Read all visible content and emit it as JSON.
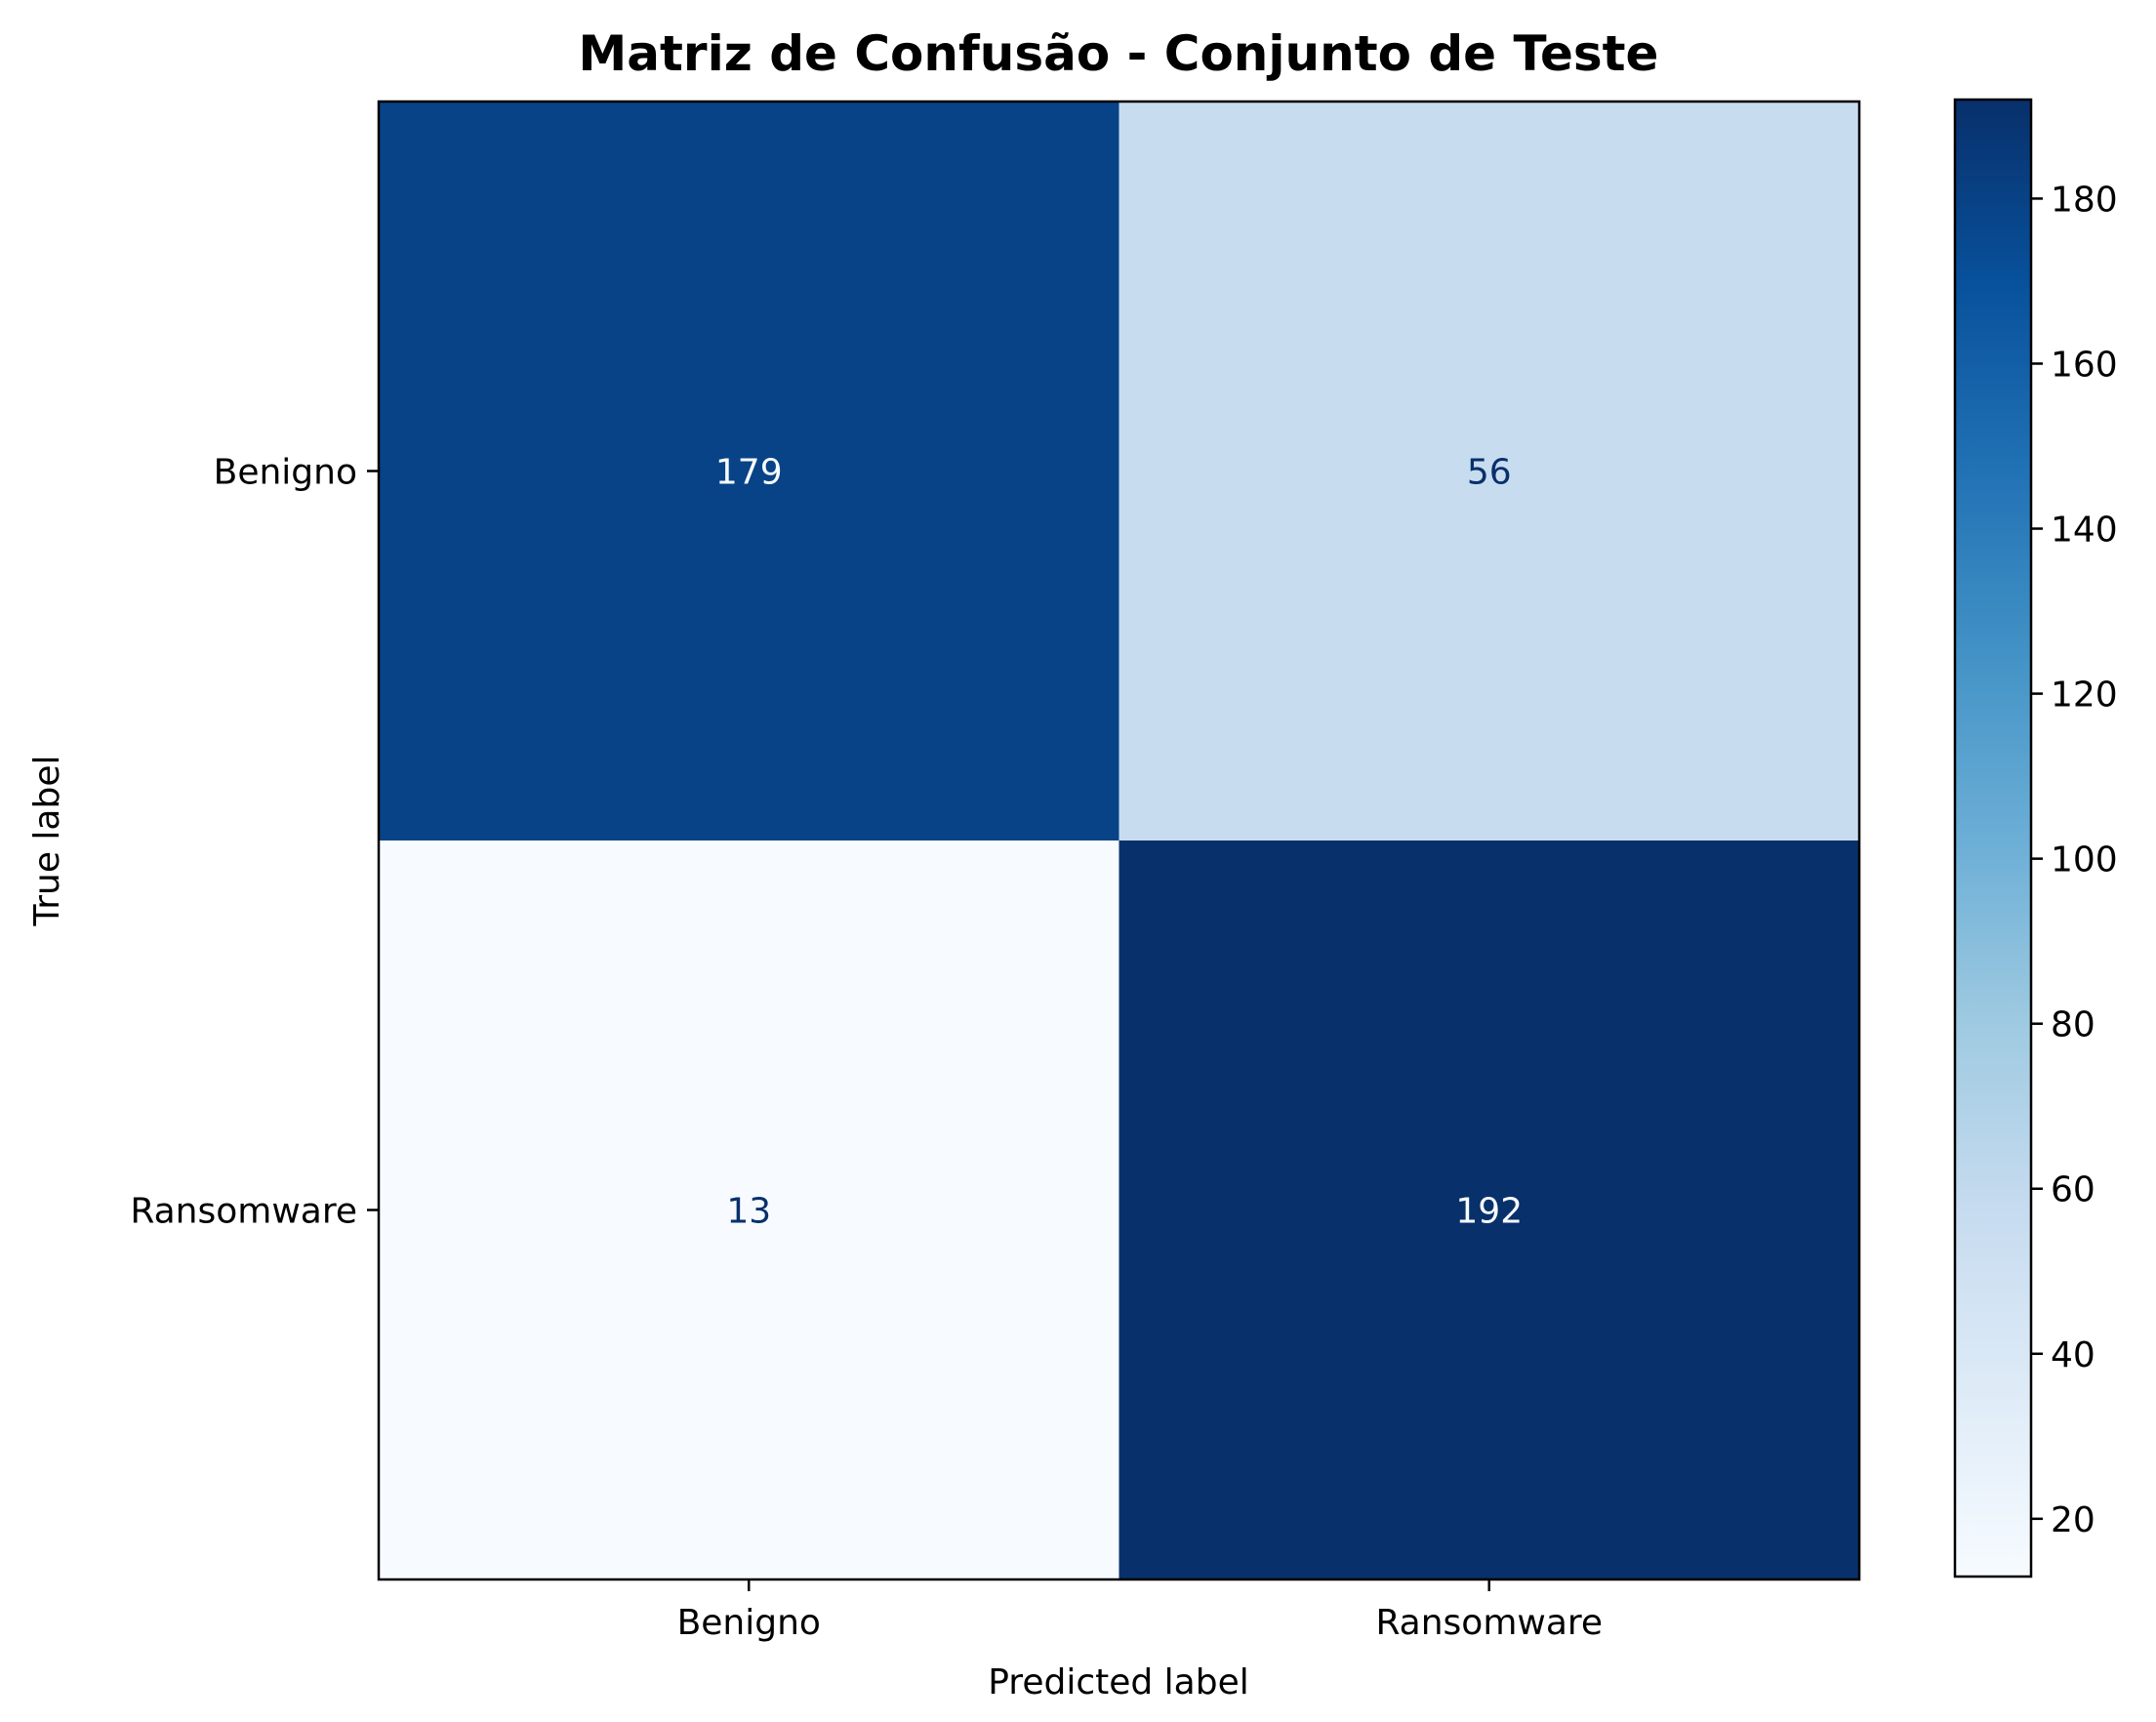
{
  "chart_data": {
    "type": "heatmap",
    "title": "Matriz de Confusão - Conjunto de Teste",
    "xlabel": "Predicted label",
    "ylabel": "True label",
    "x_categories": [
      "Benigno",
      "Ransomware"
    ],
    "y_categories": [
      "Benigno",
      "Ransomware"
    ],
    "values": [
      [
        179,
        56
      ],
      [
        13,
        192
      ]
    ],
    "colormap": "Blues",
    "colorbar": {
      "range": [
        13,
        192
      ],
      "ticks": [
        20,
        40,
        60,
        80,
        100,
        120,
        140,
        160,
        180
      ]
    },
    "grid": false
  },
  "colors": {
    "text_dark": "#08306b",
    "text_light": "#f7fbff",
    "axis": "#000000"
  }
}
